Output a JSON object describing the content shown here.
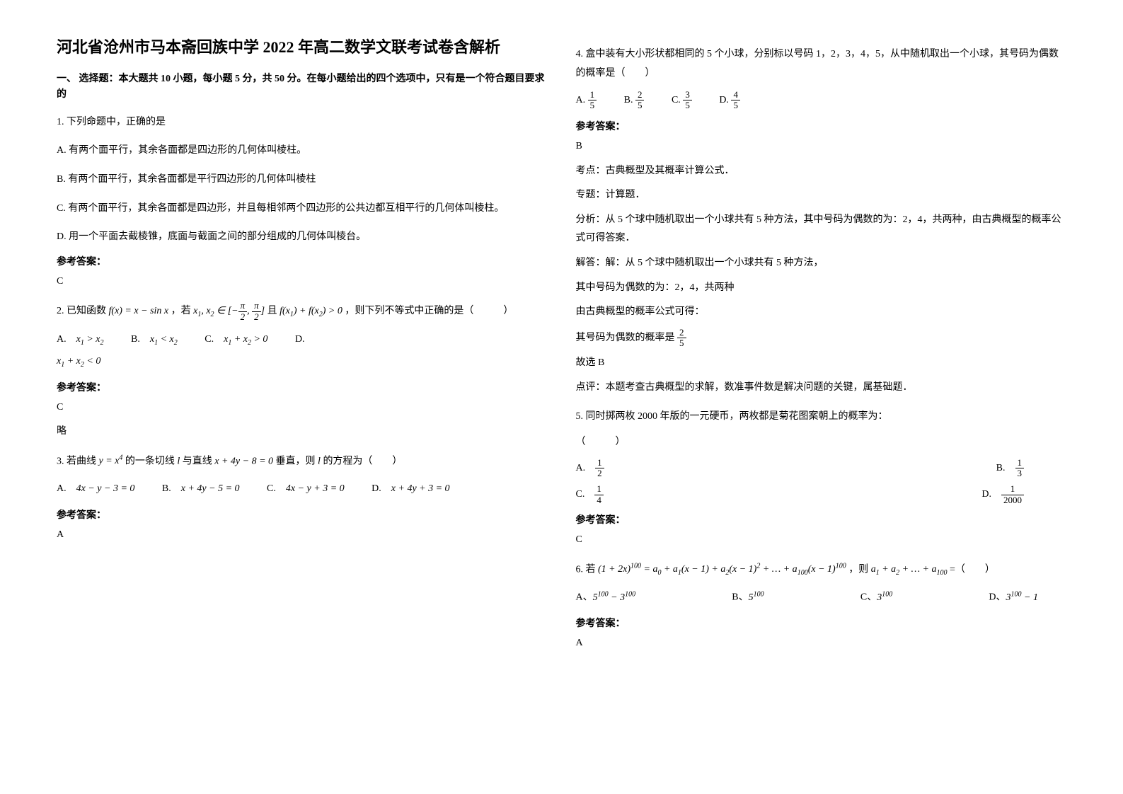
{
  "title": "河北省沧州市马本斋回族中学 2022 年高二数学文联考试卷含解析",
  "section1_title": "一、 选择题：本大题共 10 小题，每小题 5 分，共 50 分。在每小题给出的四个选项中，只有是一个符合题目要求的",
  "q1": {
    "stem": "1. 下列命题中，正确的是",
    "optA": "A. 有两个面平行，其余各面都是四边形的几何体叫棱柱。",
    "optB": "B. 有两个面平行，其余各面都是平行四边形的几何体叫棱柱",
    "optC": "C. 有两个面平行，其余各面都是四边形，并且每相邻两个四边形的公共边都互相平行的几何体叫棱柱。",
    "optD": "D. 用一个平面去截棱锥，底面与截面之间的部分组成的几何体叫棱台。",
    "answer_label": "参考答案：",
    "answer": "C"
  },
  "q2": {
    "stem_prefix": "2. 已知函数",
    "stem_mid": "，若",
    "stem_mid2": "且",
    "stem_suffix": "，则下列不等式中正确的是（　　　）",
    "optA": "A.　",
    "optB": "B.　",
    "optC": "C.　",
    "optD": "D.　",
    "answer_label": "参考答案：",
    "answer": "C",
    "extra": "略"
  },
  "q3": {
    "stem_prefix": "3. 若曲线",
    "stem_mid1": " 的一条切线",
    "stem_mid2": "与直线",
    "stem_mid3": "垂直，则",
    "stem_suffix": "的方程为（　　）",
    "optA": "A.　",
    "optA_math": "4x − y − 3 = 0",
    "optB": "B.　",
    "optB_math": "x + 4y − 5 = 0",
    "optC": "C.　",
    "optC_math": "4x − y + 3 = 0",
    "optD": "D.　",
    "optD_math": "x + 4y + 3 = 0",
    "answer_label": "参考答案：",
    "answer": "A"
  },
  "q4": {
    "stem": "4. 盒中装有大小形状都相同的 5 个小球，分别标以号码 1，2，3，4，5，从中随机取出一个小球，其号码为偶数的概率是（　　）",
    "optA": "A.",
    "optB": "B.",
    "optC": "C.",
    "optD": "D.",
    "fracA_num": "1",
    "fracA_den": "5",
    "fracB_num": "2",
    "fracB_den": "5",
    "fracC_num": "3",
    "fracC_den": "5",
    "fracD_num": "4",
    "fracD_den": "5",
    "answer_label": "参考答案：",
    "answer": "B",
    "line1": "考点：古典概型及其概率计算公式．",
    "line2": "专题：计算题．",
    "line3": "分析：从 5 个球中随机取出一个小球共有 5 种方法，其中号码为偶数的为：2，4，共两种，由古典概型的概率公式可得答案．",
    "line4": "解答：解：从 5 个球中随机取出一个小球共有 5 种方法，",
    "line5": "其中号码为偶数的为：2，4，共两种",
    "line6": "由古典概型的概率公式可得：",
    "line7_prefix": "其号码为偶数的概率是",
    "frac7_num": "2",
    "frac7_den": "5",
    "line8": "故选 B",
    "line9": "点评：本题考查古典概型的求解，数准事件数是解决问题的关键，属基础题．"
  },
  "q5": {
    "stem": "5. 同时掷两枚 2000 年版的一元硬币，两枚都是菊花图案朝上的概率为：",
    "blank": "（　　　）",
    "optA": "A.",
    "optB": "B.",
    "optC": "C.",
    "optD": "D.",
    "fracA_num": "1",
    "fracA_den": "2",
    "fracB_num": "1",
    "fracB_den": "3",
    "fracC_num": "1",
    "fracC_den": "4",
    "fracD_num": "1",
    "fracD_den": "2000",
    "answer_label": "参考答案：",
    "answer": "C"
  },
  "q6": {
    "stem_prefix": "6. 若",
    "stem_mid": "，则",
    "stem_suffix": " =（　　）",
    "optA": "A、",
    "optB": "B、",
    "optC": "C、",
    "optD": "D、",
    "answer_label": "参考答案：",
    "answer": "A"
  }
}
